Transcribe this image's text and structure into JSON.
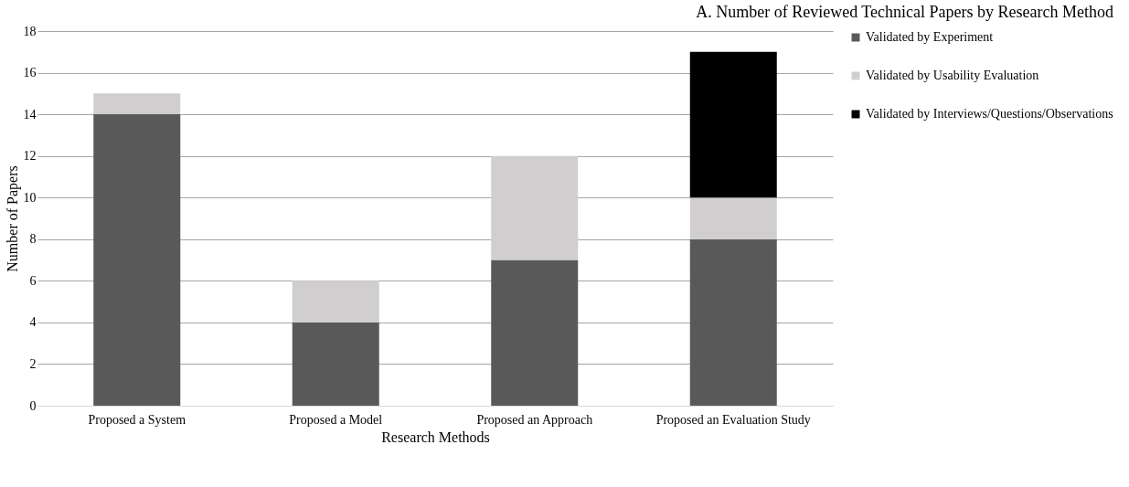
{
  "chart_data": {
    "type": "bar",
    "title": "A. Number of Reviewed Technical Papers by Research Method",
    "xlabel": "Research Methods",
    "ylabel": "Number of Papers",
    "categories": [
      "Proposed a System",
      "Proposed a Model",
      "Proposed an Approach",
      "Proposed an Evaluation Study"
    ],
    "stacked": true,
    "series": [
      {
        "name": "Validated by Experiment",
        "color": "#595959",
        "values": [
          14,
          4,
          7,
          8
        ]
      },
      {
        "name": "Validated by Usability Evaluation",
        "color": "#d0cece",
        "values": [
          1,
          2,
          5,
          2
        ]
      },
      {
        "name": "Validated by Interviews/Questions/Observations",
        "color": "#000000",
        "values": [
          null,
          null,
          null,
          7
        ]
      }
    ],
    "ylim": [
      0,
      18
    ],
    "yticks": [
      0,
      2,
      4,
      6,
      8,
      10,
      12,
      14,
      16,
      18
    ],
    "grid": "y",
    "legend": "right"
  }
}
